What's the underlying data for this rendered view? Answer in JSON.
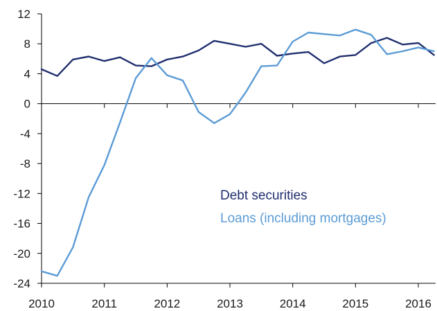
{
  "chart_data": {
    "type": "line",
    "title": "",
    "xlabel": "",
    "ylabel": "",
    "xlim": [
      2010,
      2016.33
    ],
    "ylim": [
      -24,
      12
    ],
    "x_ticks": [
      2010,
      2011,
      2012,
      2013,
      2014,
      2015,
      2016
    ],
    "x_tick_labels": [
      "2010",
      "2011",
      "2012",
      "2013",
      "2014",
      "2015",
      "2016"
    ],
    "y_ticks": [
      12,
      8,
      4,
      0,
      -4,
      -8,
      -12,
      -16,
      -20,
      -24
    ],
    "y_tick_labels": [
      "12",
      "8",
      "4",
      "0",
      "-4",
      "-8",
      "-12",
      "-16",
      "-20",
      "-24"
    ],
    "grid": false,
    "legend": "center-right",
    "series": [
      {
        "name": "Debt securities",
        "color": "#1f2e6e",
        "x": [
          2010,
          2010.25,
          2010.5,
          2010.75,
          2011,
          2011.25,
          2011.5,
          2011.75,
          2012,
          2012.25,
          2012.5,
          2012.75,
          2013,
          2013.25,
          2013.5,
          2013.75,
          2014,
          2014.25,
          2014.5,
          2014.75,
          2015,
          2015.25,
          2015.5,
          2015.75,
          2016,
          2016.25
        ],
        "values": [
          4.6,
          3.7,
          5.9,
          6.3,
          5.7,
          6.2,
          5.1,
          5.0,
          5.9,
          6.3,
          7.1,
          8.4,
          8.0,
          7.6,
          8.0,
          6.4,
          6.7,
          6.9,
          5.4,
          6.3,
          6.5,
          8.1,
          8.8,
          7.9,
          8.1,
          6.5
        ]
      },
      {
        "name": "Loans (including mortgages)",
        "color": "#5b9bd5",
        "x": [
          2010,
          2010.25,
          2010.5,
          2010.75,
          2011,
          2011.25,
          2011.5,
          2011.75,
          2012,
          2012.25,
          2012.5,
          2012.75,
          2013,
          2013.25,
          2013.5,
          2013.75,
          2014,
          2014.25,
          2014.5,
          2014.75,
          2015,
          2015.25,
          2015.5,
          2015.75,
          2016,
          2016.25
        ],
        "values": [
          -22.4,
          -23.0,
          -19.2,
          -12.5,
          -8.2,
          -2.5,
          3.4,
          6.1,
          3.8,
          3.1,
          -1.1,
          -2.6,
          -1.4,
          1.5,
          5.0,
          5.1,
          8.3,
          9.5,
          9.3,
          9.1,
          9.9,
          9.2,
          6.6,
          7.0,
          7.5,
          7.0
        ]
      }
    ]
  }
}
